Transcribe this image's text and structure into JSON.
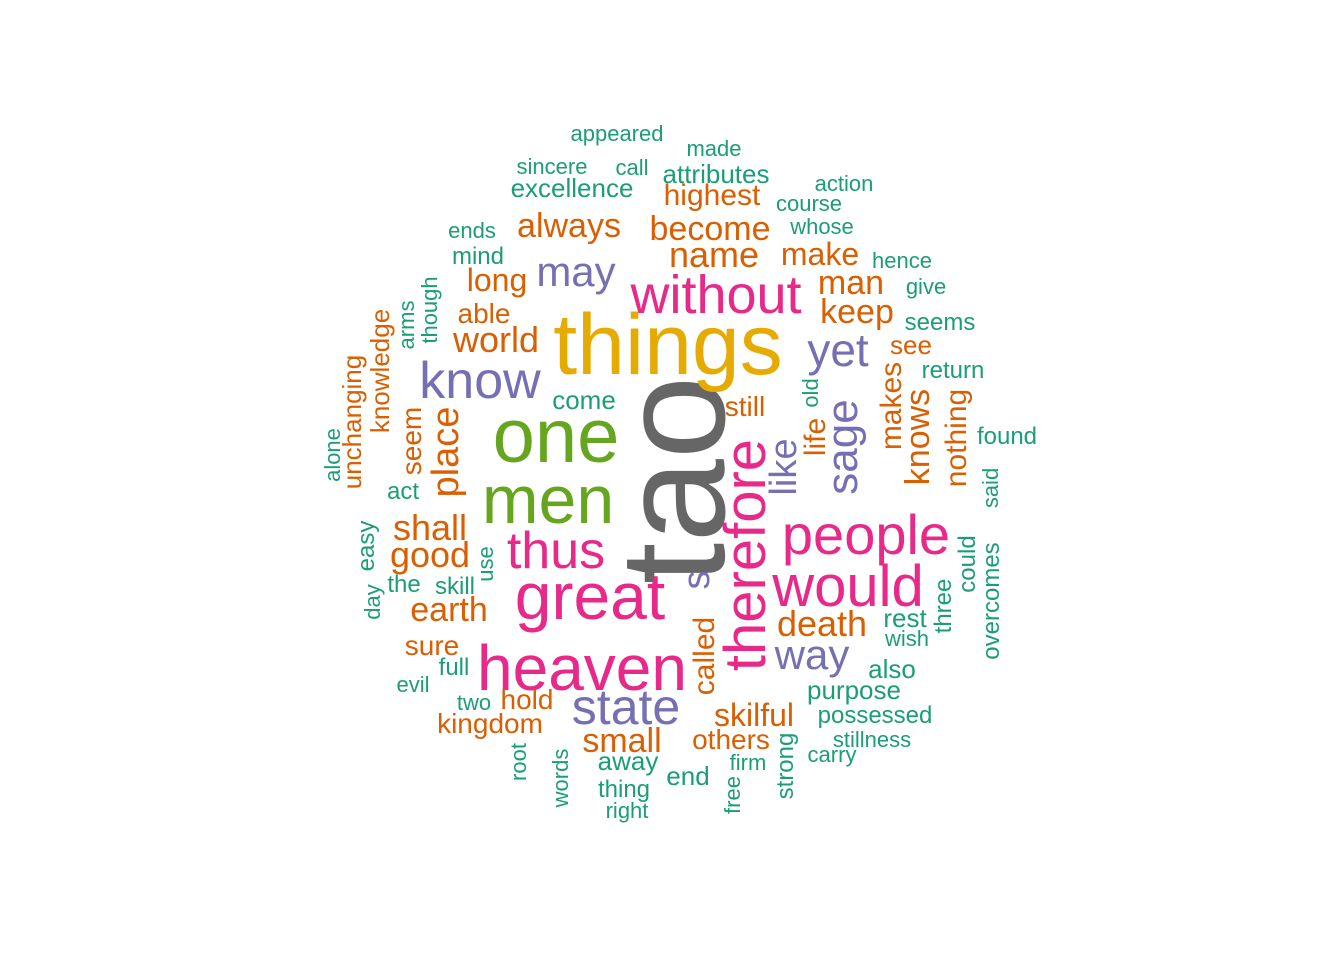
{
  "colors": {
    "top": "#666666",
    "second": "#E6AB02",
    "tier_green": "#66A61E",
    "tier_pink": "#E7298A",
    "tier_purple": "#7570B3",
    "tier_orange": "#D95F02",
    "tier_teal": "#1B9E77"
  },
  "words": [
    {
      "text": "tao",
      "color": "#666666"
    },
    {
      "text": "things",
      "color": "#E6AB02"
    },
    {
      "text": "one",
      "color": "#66A61E"
    },
    {
      "text": "men",
      "color": "#66A61E"
    },
    {
      "text": "heaven",
      "color": "#E7298A"
    },
    {
      "text": "great",
      "color": "#E7298A"
    },
    {
      "text": "therefore",
      "color": "#E7298A"
    },
    {
      "text": "would",
      "color": "#E7298A"
    },
    {
      "text": "people",
      "color": "#E7298A"
    },
    {
      "text": "without",
      "color": "#E7298A"
    },
    {
      "text": "thus",
      "color": "#E7298A"
    },
    {
      "text": "know",
      "color": "#7570B3"
    },
    {
      "text": "state",
      "color": "#7570B3"
    },
    {
      "text": "sage",
      "color": "#7570B3"
    },
    {
      "text": "yet",
      "color": "#7570B3"
    },
    {
      "text": "may",
      "color": "#7570B3"
    },
    {
      "text": "way",
      "color": "#7570B3"
    },
    {
      "text": "like",
      "color": "#7570B3"
    },
    {
      "text": "s",
      "color": "#7570B3"
    },
    {
      "text": "name",
      "color": "#D95F02"
    },
    {
      "text": "become",
      "color": "#D95F02"
    },
    {
      "text": "always",
      "color": "#D95F02"
    },
    {
      "text": "world",
      "color": "#D95F02"
    },
    {
      "text": "place",
      "color": "#D95F02"
    },
    {
      "text": "shall",
      "color": "#D95F02"
    },
    {
      "text": "good",
      "color": "#D95F02"
    },
    {
      "text": "earth",
      "color": "#D95F02"
    },
    {
      "text": "man",
      "color": "#D95F02"
    },
    {
      "text": "keep",
      "color": "#D95F02"
    },
    {
      "text": "make",
      "color": "#D95F02"
    },
    {
      "text": "long",
      "color": "#D95F02"
    },
    {
      "text": "death",
      "color": "#D95F02"
    },
    {
      "text": "skilful",
      "color": "#D95F02"
    },
    {
      "text": "small",
      "color": "#D95F02"
    },
    {
      "text": "knows",
      "color": "#D95F02"
    },
    {
      "text": "nothing",
      "color": "#D95F02"
    },
    {
      "text": "makes",
      "color": "#D95F02"
    },
    {
      "text": "life",
      "color": "#D95F02"
    },
    {
      "text": "called",
      "color": "#D95F02"
    },
    {
      "text": "highest",
      "color": "#D95F02"
    },
    {
      "text": "kingdom",
      "color": "#D95F02"
    },
    {
      "text": "others",
      "color": "#D95F02"
    },
    {
      "text": "seem",
      "color": "#D95F02"
    },
    {
      "text": "knowledge",
      "color": "#D95F02"
    },
    {
      "text": "unchanging",
      "color": "#D95F02"
    },
    {
      "text": "able",
      "color": "#D95F02"
    },
    {
      "text": "still",
      "color": "#D95F02"
    },
    {
      "text": "hold",
      "color": "#D95F02"
    },
    {
      "text": "sure",
      "color": "#D95F02"
    },
    {
      "text": "see",
      "color": "#D95F02"
    },
    {
      "text": "appeared",
      "color": "#1B9E77"
    },
    {
      "text": "made",
      "color": "#1B9E77"
    },
    {
      "text": "sincere",
      "color": "#1B9E77"
    },
    {
      "text": "call",
      "color": "#1B9E77"
    },
    {
      "text": "attributes",
      "color": "#1B9E77"
    },
    {
      "text": "excellence",
      "color": "#1B9E77"
    },
    {
      "text": "action",
      "color": "#1B9E77"
    },
    {
      "text": "course",
      "color": "#1B9E77"
    },
    {
      "text": "whose",
      "color": "#1B9E77"
    },
    {
      "text": "ends",
      "color": "#1B9E77"
    },
    {
      "text": "mind",
      "color": "#1B9E77"
    },
    {
      "text": "hence",
      "color": "#1B9E77"
    },
    {
      "text": "give",
      "color": "#1B9E77"
    },
    {
      "text": "seems",
      "color": "#1B9E77"
    },
    {
      "text": "return",
      "color": "#1B9E77"
    },
    {
      "text": "though",
      "color": "#1B9E77"
    },
    {
      "text": "arms",
      "color": "#1B9E77"
    },
    {
      "text": "come",
      "color": "#1B9E77"
    },
    {
      "text": "old",
      "color": "#1B9E77"
    },
    {
      "text": "found",
      "color": "#1B9E77"
    },
    {
      "text": "alone",
      "color": "#1B9E77"
    },
    {
      "text": "act",
      "color": "#1B9E77"
    },
    {
      "text": "said",
      "color": "#1B9E77"
    },
    {
      "text": "easy",
      "color": "#1B9E77"
    },
    {
      "text": "use",
      "color": "#1B9E77"
    },
    {
      "text": "could",
      "color": "#1B9E77"
    },
    {
      "text": "the",
      "color": "#1B9E77"
    },
    {
      "text": "skill",
      "color": "#1B9E77"
    },
    {
      "text": "overcomes",
      "color": "#1B9E77"
    },
    {
      "text": "day",
      "color": "#1B9E77"
    },
    {
      "text": "three",
      "color": "#1B9E77"
    },
    {
      "text": "rest",
      "color": "#1B9E77"
    },
    {
      "text": "wish",
      "color": "#1B9E77"
    },
    {
      "text": "full",
      "color": "#1B9E77"
    },
    {
      "text": "also",
      "color": "#1B9E77"
    },
    {
      "text": "evil",
      "color": "#1B9E77"
    },
    {
      "text": "purpose",
      "color": "#1B9E77"
    },
    {
      "text": "two",
      "color": "#1B9E77"
    },
    {
      "text": "possessed",
      "color": "#1B9E77"
    },
    {
      "text": "stillness",
      "color": "#1B9E77"
    },
    {
      "text": "carry",
      "color": "#1B9E77"
    },
    {
      "text": "firm",
      "color": "#1B9E77"
    },
    {
      "text": "strong",
      "color": "#1B9E77"
    },
    {
      "text": "root",
      "color": "#1B9E77"
    },
    {
      "text": "words",
      "color": "#1B9E77"
    },
    {
      "text": "away",
      "color": "#1B9E77"
    },
    {
      "text": "end",
      "color": "#1B9E77"
    },
    {
      "text": "thing",
      "color": "#1B9E77"
    },
    {
      "text": "free",
      "color": "#1B9E77"
    },
    {
      "text": "right",
      "color": "#1B9E77"
    }
  ]
}
